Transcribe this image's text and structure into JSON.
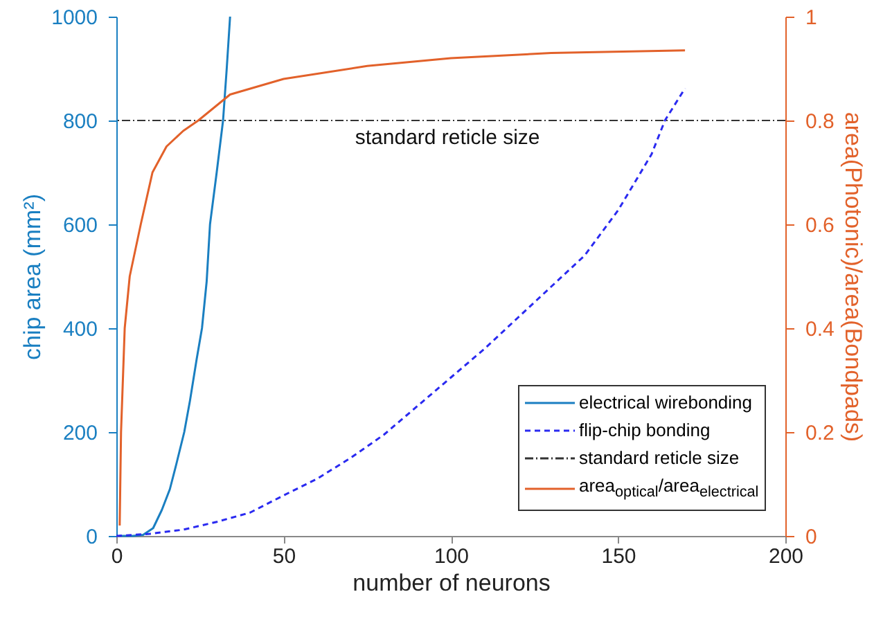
{
  "chart_data": {
    "type": "line",
    "xlabel": "number of neurons",
    "ylabel": "chip area (mm²)",
    "y2label": "area(Photonic)/area(Bondpads)",
    "xlim": [
      0,
      200
    ],
    "xticks": [
      0,
      50,
      100,
      150,
      200
    ],
    "ylim": [
      0,
      1000
    ],
    "yticks": [
      0,
      200,
      400,
      600,
      800,
      1000
    ],
    "y2lim": [
      0,
      1
    ],
    "y2ticks": [
      0,
      0.2,
      0.4,
      0.6,
      0.8,
      1
    ],
    "legend": "bottom right",
    "grid": false,
    "marker": "none",
    "ref_lines": [
      {
        "axis": "y",
        "value": 800,
        "label": "standard reticle size",
        "color": "#333333",
        "line_style": "dashed"
      }
    ],
    "series": [
      {
        "name": "electrical wirebonding",
        "color": "#1a7fc1",
        "line_style": "solid",
        "x": [
          1,
          5,
          8,
          11,
          13.6,
          16,
          18,
          20.3,
          22,
          24,
          25.6,
          27,
          28,
          30,
          31.9,
          33,
          34
        ],
        "values": [
          0,
          0,
          2,
          15,
          50,
          90,
          140,
          200,
          260,
          340,
          400,
          490,
          600,
          700,
          800,
          900,
          1000
        ]
      },
      {
        "name": "flip-chip bonding",
        "color": "#2a2af0",
        "line_style": "dashed",
        "x": [
          0,
          10,
          20,
          30,
          40,
          50,
          60,
          70,
          80,
          90,
          100,
          110,
          120,
          130,
          140,
          150,
          160,
          164,
          170
        ],
        "values": [
          0,
          4,
          12,
          27,
          45,
          78,
          110,
          150,
          195,
          250,
          305,
          360,
          420,
          480,
          540,
          627,
          735,
          800,
          862
        ]
      },
      {
        "name": "area$_{optical}$/area$_{electrical}$",
        "color": "#e2612a",
        "line_style": "solid",
        "axis": "y2",
        "x": [
          1,
          1.4,
          2.5,
          4,
          7.3,
          10.8,
          15,
          20,
          24.5,
          34,
          50,
          75,
          100,
          130,
          170
        ],
        "values": [
          0.02,
          0.2,
          0.4,
          0.5,
          0.6,
          0.7,
          0.75,
          0.78,
          0.8,
          0.85,
          0.88,
          0.905,
          0.92,
          0.93,
          0.935
        ]
      }
    ]
  }
}
